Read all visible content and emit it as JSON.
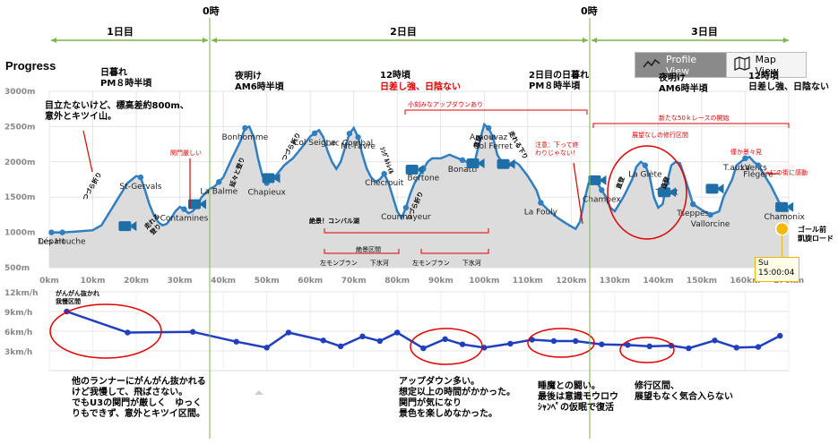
{
  "header": {
    "days": [
      "1日目",
      "2日目",
      "3日目"
    ],
    "midnight_label": "0時",
    "title": "Progress"
  },
  "view_toggle": {
    "profile_label": "Profile View",
    "map_label": "Map View",
    "profile_icon": "line-chart-icon",
    "map_icon": "map-icon"
  },
  "tooltip": {
    "day": "Su",
    "time": "15:00:04"
  },
  "chart_data": [
    {
      "type": "area",
      "ylim": [
        500,
        3000
      ],
      "xlim": [
        0,
        170
      ],
      "y_ticks": [
        "500m",
        "1000m",
        "1500m",
        "2000m",
        "2500m",
        "3000m"
      ],
      "x_ticks": [
        "0km",
        "10km",
        "20km",
        "30km",
        "40km",
        "50km",
        "60km",
        "70km",
        "80km",
        "90km",
        "100km",
        "110km",
        "120km",
        "130km",
        "140km",
        "150km",
        "160km",
        "170km"
      ],
      "profile": [
        [
          0,
          1000
        ],
        [
          3,
          1000
        ],
        [
          6,
          1010
        ],
        [
          10,
          1030
        ],
        [
          12,
          1100
        ],
        [
          14,
          1300
        ],
        [
          16,
          1500
        ],
        [
          18,
          1700
        ],
        [
          20,
          1800
        ],
        [
          21,
          1780
        ],
        [
          22,
          1600
        ],
        [
          23,
          1400
        ],
        [
          24,
          1250
        ],
        [
          25,
          1150
        ],
        [
          26,
          1100
        ],
        [
          27,
          1120
        ],
        [
          28,
          1200
        ],
        [
          29,
          1300
        ],
        [
          30,
          1360
        ],
        [
          31,
          1330
        ],
        [
          32,
          1270
        ],
        [
          33,
          1300
        ],
        [
          34,
          1380
        ],
        [
          35,
          1500
        ],
        [
          36,
          1560
        ],
        [
          37,
          1620
        ],
        [
          38,
          1650
        ],
        [
          40,
          1780
        ],
        [
          42,
          2050
        ],
        [
          44,
          2300
        ],
        [
          45,
          2480
        ],
        [
          46,
          2500
        ],
        [
          47,
          2350
        ],
        [
          48,
          2050
        ],
        [
          49,
          1800
        ],
        [
          50,
          1700
        ],
        [
          52,
          1800
        ],
        [
          54,
          1950
        ],
        [
          56,
          2050
        ],
        [
          58,
          2200
        ],
        [
          60,
          2360
        ],
        [
          62,
          2450
        ],
        [
          63,
          2350
        ],
        [
          64,
          2150
        ],
        [
          65,
          2000
        ],
        [
          66,
          1900
        ],
        [
          67,
          2000
        ],
        [
          68,
          2200
        ],
        [
          69,
          2400
        ],
        [
          70,
          2480
        ],
        [
          71,
          2350
        ],
        [
          72,
          2100
        ],
        [
          73,
          1900
        ],
        [
          74,
          1780
        ],
        [
          75,
          1720
        ],
        [
          76,
          1750
        ],
        [
          77,
          1830
        ],
        [
          78,
          1700
        ],
        [
          79,
          1500
        ],
        [
          80,
          1300
        ],
        [
          81,
          1200
        ],
        [
          82,
          1350
        ],
        [
          83,
          1550
        ],
        [
          84,
          1700
        ],
        [
          85,
          1800
        ],
        [
          86,
          1900
        ],
        [
          87,
          2000
        ],
        [
          88,
          2050
        ],
        [
          90,
          2050
        ],
        [
          92,
          2100
        ],
        [
          94,
          2050
        ],
        [
          96,
          2000
        ],
        [
          97,
          1950
        ],
        [
          98,
          2050
        ],
        [
          99,
          2300
        ],
        [
          100,
          2530
        ],
        [
          101,
          2480
        ],
        [
          102,
          2350
        ],
        [
          103,
          2100
        ],
        [
          104,
          2000
        ],
        [
          105,
          1950
        ],
        [
          106,
          1950
        ],
        [
          107,
          2000
        ],
        [
          108,
          1960
        ],
        [
          110,
          1800
        ],
        [
          112,
          1600
        ],
        [
          113,
          1420
        ],
        [
          115,
          1300
        ],
        [
          117,
          1200
        ],
        [
          119,
          1120
        ],
        [
          121,
          1050
        ],
        [
          122,
          1150
        ],
        [
          123,
          1450
        ],
        [
          124,
          1700
        ],
        [
          125,
          1750
        ],
        [
          126,
          1700
        ],
        [
          127,
          1600
        ],
        [
          128,
          1500
        ],
        [
          129,
          1350
        ],
        [
          130,
          1300
        ],
        [
          132,
          1500
        ],
        [
          134,
          1750
        ],
        [
          135,
          1930
        ],
        [
          136,
          2000
        ],
        [
          137,
          1950
        ],
        [
          138,
          1800
        ],
        [
          139,
          1500
        ],
        [
          140,
          1350
        ],
        [
          141,
          1400
        ],
        [
          142,
          1700
        ],
        [
          143,
          1950
        ],
        [
          144,
          2000
        ],
        [
          145,
          1980
        ],
        [
          146,
          1800
        ],
        [
          147,
          1600
        ],
        [
          148,
          1400
        ],
        [
          150,
          1320
        ],
        [
          152,
          1250
        ],
        [
          154,
          1300
        ],
        [
          155,
          1500
        ],
        [
          157,
          1750
        ],
        [
          158,
          1950
        ],
        [
          159,
          2000
        ],
        [
          160,
          2050
        ],
        [
          161,
          2070
        ],
        [
          162,
          2000
        ],
        [
          163,
          1950
        ],
        [
          164,
          1850
        ],
        [
          166,
          1650
        ],
        [
          168,
          1400
        ],
        [
          170,
          1300
        ]
      ]
    },
    {
      "type": "line",
      "ylim": [
        0,
        12
      ],
      "y_ticks": [
        "3km/h",
        "6km/h",
        "9km/h",
        "12km/h"
      ],
      "speed": [
        [
          4,
          9.0
        ],
        [
          18,
          5.8
        ],
        [
          33,
          5.9
        ],
        [
          43,
          4.4
        ],
        [
          50,
          3.5
        ],
        [
          55,
          5.8
        ],
        [
          63,
          4.6
        ],
        [
          67,
          3.7
        ],
        [
          72,
          5.2
        ],
        [
          76,
          4.5
        ],
        [
          80,
          5.8
        ],
        [
          86,
          3.4
        ],
        [
          91,
          4.8
        ],
        [
          95,
          4.0
        ],
        [
          100,
          3.5
        ],
        [
          106,
          4.1
        ],
        [
          111,
          4.7
        ],
        [
          116,
          4.5
        ],
        [
          121,
          4.5
        ],
        [
          127,
          4.0
        ],
        [
          133,
          3.9
        ],
        [
          138,
          3.7
        ],
        [
          143,
          3.8
        ],
        [
          147,
          3.4
        ],
        [
          153,
          4.6
        ],
        [
          158,
          3.5
        ],
        [
          163,
          3.6
        ],
        [
          168,
          5.3
        ]
      ]
    }
  ],
  "place_labels": [
    {
      "text": "Départ",
      "km": 0.5,
      "dy": -1
    },
    {
      "text": "Les Houche",
      "km": 3,
      "dy": -1
    },
    {
      "text": "St-Gervals",
      "km": 21,
      "dy": -1
    },
    {
      "text": "Contamines",
      "km": 31,
      "dy": -1
    },
    {
      "text": "La Balme",
      "km": 39,
      "dy": -1
    },
    {
      "text": "Bonhomme",
      "km": 45,
      "dy": -1
    },
    {
      "text": "Chapieux",
      "km": 50,
      "dy": -1
    },
    {
      "text": "Col Seigne",
      "km": 61,
      "dy": -1
    },
    {
      "text": "Mt-Favre",
      "km": 71,
      "dy": -1
    },
    {
      "text": "Lac Combal",
      "km": 69,
      "dy": -1
    },
    {
      "text": "Checrouit",
      "km": 77,
      "dy": -1
    },
    {
      "text": "Courmayeur",
      "km": 82,
      "dy": -1
    },
    {
      "text": "Bertone",
      "km": 86,
      "dy": -1
    },
    {
      "text": "Bonatti",
      "km": 95,
      "dy": -1
    },
    {
      "text": "Col Ferret",
      "km": 102,
      "dy": -1
    },
    {
      "text": "Arnouvaz",
      "km": 101,
      "dy": -1
    },
    {
      "text": "La Fouly",
      "km": 113,
      "dy": -1
    },
    {
      "text": "Champex",
      "km": 127,
      "dy": -1
    },
    {
      "text": "La Giète",
      "km": 137,
      "dy": -1
    },
    {
      "text": "Tseppes",
      "km": 148,
      "dy": -1
    },
    {
      "text": "Trient",
      "km": 142,
      "dy": -1
    },
    {
      "text": "Vallorcine",
      "km": 152,
      "dy": -1
    },
    {
      "text": "T.auxVents",
      "km": 160,
      "dy": -1
    },
    {
      "text": "La",
      "km": 160,
      "dy": -1
    },
    {
      "text": "Flégère",
      "km": 163,
      "dy": -1
    },
    {
      "text": "Chamonix",
      "km": 169,
      "dy": -1
    }
  ],
  "notes": {
    "dusk1": "日暮れ\nPM８時半頃",
    "dawn1": "夜明け\nAM6時半頃",
    "noon1_title": "12時頃",
    "noon1_red": "日差し強、日陰ない",
    "dusk2": "2日目の日暮れ\nPM８時半頃",
    "dawn2": "夜明け\nAM6時半頃",
    "noon2": "12時頃\n日差し強、日陰ない",
    "note_first": "目立たないけど、標高差約800m、\n意外とキツイ山。",
    "gate_strict": "関門厳しい",
    "updown": "小刻みなアップダウンあり",
    "caution": "注意：下って終\nわりじゃない！",
    "new50k": "新たな50ｋレースの開始",
    "training_zone": "展望なしの修行区間",
    "view_ok": "僅か景々見",
    "chamonix_moved": "ｼｬﾓﾆの街に感動",
    "goal": "ゴール前\n凱旋ロード",
    "zekkei": "絶景！コンバル湖",
    "zekkei_zone": "絶景区間",
    "montblanc_left": "左モンブラン　　下氷河",
    "montblanc_left2": "左モンブラン　　下氷河",
    "hard_fast": "がんがん抜かれ\n我慢区間",
    "bottom1": "他のランナーにがんがん抜かれる\nけど我慢して、飛ばさない。\nでもU3の関門が厳しく　ゆっく\nりもできず、意外とキツイ区間。",
    "bottom2": "アップダウン多い。\n想定以上の時間がかかった。\n関門が気になり\n景色を楽しめなかった。",
    "bottom3": "睡魔との闘い。\n最後は意識モウロウ\nｼｬﾝﾍﾟの仮眠で復活",
    "bottom4": "修行区間、\n展望もなく気合入らない",
    "slope1": "つづら折り",
    "slope2": "走れる\n登り",
    "slope3": "延々と登り",
    "slope4": "つづら折り",
    "slope5": "ｼﾝｸﾞﾙﾄﾚｲﾙ",
    "slope6": "つづら折り",
    "slope7": "直登",
    "slope8": "走れる下り",
    "slope9": "直登",
    "slope10": "直登"
  },
  "colors": {
    "line": "#2f7fc1",
    "area": "#dcdcdc",
    "speed": "#1f3fbf",
    "day_arrow": "#7ab648",
    "red": "#e00000",
    "tooltip_bg": "#fffde8",
    "tooltip_border": "#f0b400",
    "goal_dot": "#f5b800"
  }
}
